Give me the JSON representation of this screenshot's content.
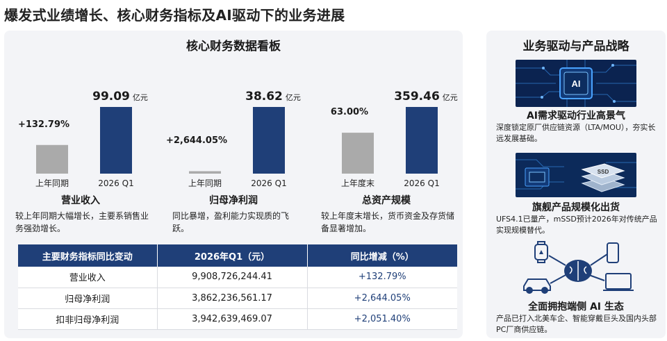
{
  "page_title": "爆发式业绩增长、核心财务指标及AI驱动下的业务进展",
  "left_panel": {
    "title": "核心财务数据看板",
    "metrics": [
      {
        "name": "营业收入",
        "desc": "较上年同期大幅增长，主要系销售业务强劲增长。",
        "unit": "亿元",
        "change_label": "+132.79%"
      },
      {
        "name": "归母净利润",
        "desc": "同比暴增，盈利能力实现质的飞跃。",
        "unit": "亿元",
        "change_label": "+2,644.05%"
      },
      {
        "name": "总资产规模",
        "desc": "较上年度末增长，货币资金及存货储备显著增加。",
        "unit": "亿元",
        "change_label": "63.00%"
      }
    ],
    "table": {
      "headers": [
        "主要财务指标同比变动",
        "2026年Q1（元）",
        "同比增减（%）"
      ],
      "rows": [
        [
          "营业收入",
          "9,908,726,244.41",
          "+132.79%"
        ],
        [
          "归母净利润",
          "3,862,236,561.17",
          "+2,644.05%"
        ],
        [
          "扣非归母净利润",
          "3,942,639,469.07",
          "+2,051.40%"
        ]
      ]
    }
  },
  "chart_data": [
    {
      "type": "bar",
      "title": "营业收入",
      "categories": [
        "上年同期",
        "2026 Q1"
      ],
      "values": [
        42.57,
        99.09
      ],
      "value_labels": [
        "",
        "99.09"
      ],
      "unit": "亿元",
      "annotation": "+132.79%",
      "colors": [
        "#aaaaaa",
        "#1f3f78"
      ]
    },
    {
      "type": "bar",
      "title": "归母净利润",
      "categories": [
        "上年同期",
        "2026 Q1"
      ],
      "values": [
        1.41,
        38.62
      ],
      "value_labels": [
        "",
        "38.62"
      ],
      "unit": "亿元",
      "annotation": "+2,644.05%",
      "colors": [
        "#aaaaaa",
        "#1f3f78"
      ]
    },
    {
      "type": "bar",
      "title": "总资产规模",
      "categories": [
        "上年度末",
        "2026 Q1"
      ],
      "values": [
        220.53,
        359.46
      ],
      "value_labels": [
        "",
        "359.46"
      ],
      "unit": "亿元",
      "annotation": "63.00%",
      "colors": [
        "#aaaaaa",
        "#1f3f78"
      ]
    }
  ],
  "right_panel": {
    "title": "业务驱动与产品战略",
    "sections": [
      {
        "title": "AI需求驱动行业高景气",
        "desc": "深度锁定原厂供应链资源（LTA/MOU），夯实长远发展基础。",
        "icon": "ai-chip-icon",
        "chip_text": "AI"
      },
      {
        "title": "旗舰产品规模化出货",
        "desc": "UFS4.1已量产，mSSD预计2026年对传统产品实现规模替代。",
        "icon": "ssd-icon",
        "chip_text": "SSD"
      },
      {
        "title": "全面拥抱端侧 AI 生态",
        "desc": "产品已打入北美车企、智能穿戴巨头及国内头部PC厂商供应链。",
        "icon": "ai-ecosystem-icon"
      }
    ]
  }
}
